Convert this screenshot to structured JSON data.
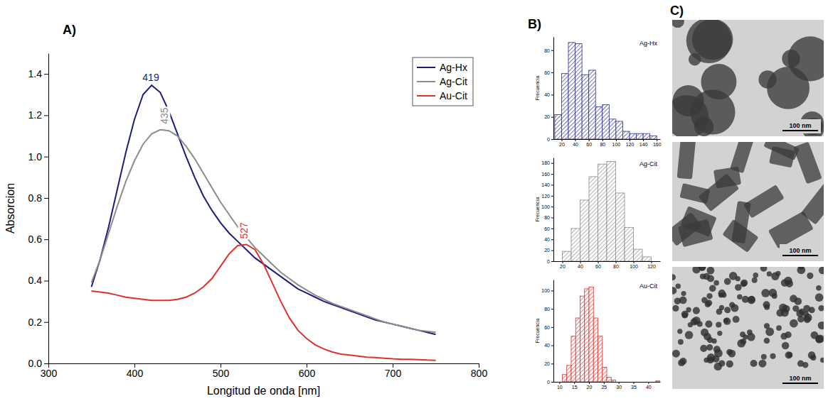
{
  "panel_labels": [
    "A)",
    "B)",
    "C)"
  ],
  "chart_data": [
    {
      "type": "line",
      "x_label": "Longitud de onda [nm]",
      "y_label": "Absorcion",
      "x": [
        350,
        360,
        370,
        380,
        390,
        400,
        410,
        420,
        430,
        440,
        450,
        460,
        470,
        480,
        490,
        500,
        510,
        520,
        530,
        540,
        550,
        560,
        570,
        580,
        590,
        600,
        610,
        620,
        630,
        640,
        650,
        660,
        670,
        680,
        690,
        700,
        710,
        720,
        730,
        740,
        750
      ],
      "series": [
        {
          "name": "Ag-Hx",
          "color": "#1c1c80",
          "values": [
            0.37,
            0.5,
            0.66,
            0.84,
            1.02,
            1.18,
            1.3,
            1.345,
            1.31,
            1.22,
            1.11,
            1.0,
            0.9,
            0.81,
            0.74,
            0.68,
            0.63,
            0.59,
            0.55,
            0.51,
            0.48,
            0.45,
            0.42,
            0.39,
            0.36,
            0.34,
            0.32,
            0.3,
            0.285,
            0.27,
            0.255,
            0.24,
            0.225,
            0.21,
            0.2,
            0.19,
            0.18,
            0.17,
            0.16,
            0.15,
            0.14
          ]
        },
        {
          "name": "Ag-Cit",
          "color": "#8c8c8c",
          "values": [
            0.39,
            0.5,
            0.63,
            0.76,
            0.88,
            0.98,
            1.06,
            1.11,
            1.13,
            1.125,
            1.1,
            1.05,
            0.99,
            0.92,
            0.85,
            0.78,
            0.72,
            0.66,
            0.61,
            0.56,
            0.52,
            0.48,
            0.44,
            0.41,
            0.38,
            0.355,
            0.33,
            0.31,
            0.29,
            0.275,
            0.26,
            0.245,
            0.23,
            0.215,
            0.2,
            0.19,
            0.18,
            0.17,
            0.16,
            0.155,
            0.15
          ]
        },
        {
          "name": "Au-Cit",
          "color": "#e0302c",
          "values": [
            0.35,
            0.345,
            0.34,
            0.33,
            0.32,
            0.315,
            0.31,
            0.305,
            0.305,
            0.305,
            0.31,
            0.32,
            0.34,
            0.37,
            0.41,
            0.47,
            0.53,
            0.57,
            0.575,
            0.55,
            0.48,
            0.39,
            0.3,
            0.22,
            0.16,
            0.12,
            0.09,
            0.07,
            0.055,
            0.045,
            0.04,
            0.035,
            0.03,
            0.028,
            0.025,
            0.022,
            0.02,
            0.02,
            0.018,
            0.016,
            0.015
          ]
        }
      ],
      "xlim": [
        300,
        800
      ],
      "xticks": [
        300,
        400,
        500,
        600,
        700,
        800
      ],
      "ylim": [
        0,
        1.5
      ],
      "yticks": [
        {
          "value": 0,
          "label": "0.0"
        },
        0.2,
        0.4,
        0.6,
        0.8,
        {
          "value": 1,
          "label": "1.0"
        },
        1.2,
        1.4
      ],
      "legend": "top right",
      "annotations": [
        {
          "text": "419",
          "x": 419,
          "y": 1.345,
          "color": "#1c1c80"
        },
        {
          "text": "435",
          "x": 435,
          "y": 1.13,
          "color": "#8c8c8c"
        },
        {
          "text": "527",
          "x": 527,
          "y": 0.575,
          "color": "#e0302c"
        }
      ]
    },
    {
      "type": "histogram",
      "title": "Ag-Hx",
      "y_label": "Frecuencia",
      "color": "#2e2e99",
      "bins": [
        10,
        20,
        30,
        40,
        50,
        60,
        70,
        80,
        90,
        100,
        110,
        120,
        130,
        140,
        150,
        160
      ],
      "values": [
        22,
        59,
        87,
        86,
        58,
        62,
        29,
        31,
        18,
        16,
        7,
        5,
        5,
        5,
        3
      ],
      "xlim": [
        8,
        165
      ],
      "xticks": [
        20,
        40,
        60,
        80,
        100,
        120,
        140,
        160
      ],
      "ylim": [
        0,
        92
      ],
      "yticks": [
        0,
        20,
        40,
        60,
        80
      ]
    },
    {
      "type": "histogram",
      "title": "Ag-Cit",
      "y_label": "Frecuencia",
      "color": "#8c8c8c",
      "bins": [
        20,
        30,
        40,
        50,
        60,
        70,
        80,
        90,
        100,
        110,
        120
      ],
      "values": [
        18,
        60,
        112,
        155,
        178,
        183,
        125,
        62,
        22,
        8
      ],
      "xlim": [
        10,
        130
      ],
      "xticks": [
        20,
        40,
        60,
        80,
        100,
        120
      ],
      "ylim": [
        0,
        190
      ],
      "yticks": [
        0,
        20,
        40,
        60,
        80,
        100,
        120,
        140,
        160,
        180
      ]
    },
    {
      "type": "histogram",
      "title": "Au-Cit",
      "y_label": "Frecuencia",
      "color": "#e0302c",
      "bins": [
        11,
        12.5,
        14,
        15.5,
        17,
        18.5,
        20,
        21.5,
        23,
        24.5,
        26,
        27.5,
        29,
        30.5,
        32,
        33.5,
        35,
        36.5,
        38,
        39.5,
        41,
        42.5,
        44
      ],
      "values": [
        8,
        18,
        50,
        70,
        94,
        102,
        104,
        70,
        50,
        16,
        5,
        2,
        0,
        0,
        0,
        0,
        0,
        0,
        0,
        0,
        0,
        1
      ],
      "xlim": [
        8,
        44
      ],
      "xticks": [
        10,
        15,
        20,
        25,
        30,
        35,
        40
      ],
      "ylim": [
        0,
        112
      ],
      "yticks": [
        0,
        20,
        40,
        60,
        80,
        100
      ]
    }
  ],
  "images": [
    {
      "scale_bar": "100 nm"
    },
    {
      "scale_bar": "100 nm"
    },
    {
      "scale_bar": "100 nm"
    }
  ]
}
